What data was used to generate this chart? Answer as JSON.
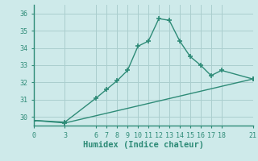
{
  "line1_x": [
    0,
    3,
    6,
    7,
    8,
    9,
    10,
    11,
    12,
    13,
    14,
    15,
    16,
    17,
    18,
    21
  ],
  "line1_y": [
    29.8,
    29.7,
    31.1,
    31.6,
    32.1,
    32.7,
    34.1,
    34.4,
    35.7,
    35.6,
    34.4,
    33.5,
    33.0,
    32.4,
    32.7,
    32.2
  ],
  "line2_x": [
    0,
    3,
    21
  ],
  "line2_y": [
    29.8,
    29.65,
    32.2
  ],
  "line_color": "#2e8b77",
  "background_color": "#ceeaea",
  "grid_color": "#aacece",
  "xlabel": "Humidex (Indice chaleur)",
  "xlim": [
    0,
    21
  ],
  "ylim": [
    29.5,
    36.5
  ],
  "xticks": [
    0,
    3,
    6,
    7,
    8,
    9,
    10,
    11,
    12,
    13,
    14,
    15,
    16,
    17,
    18,
    21
  ],
  "yticks": [
    30,
    31,
    32,
    33,
    34,
    35,
    36
  ],
  "tick_fontsize": 6,
  "xlabel_fontsize": 7.5,
  "marker": "+",
  "marker_size": 5,
  "line_width": 1.0
}
